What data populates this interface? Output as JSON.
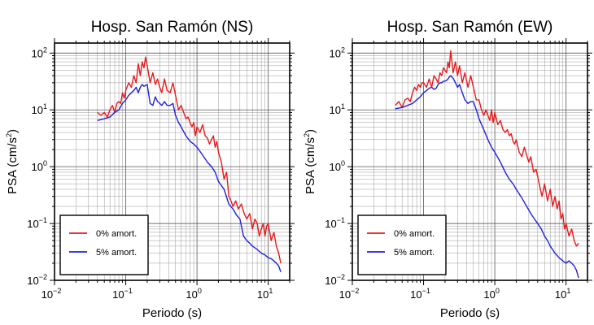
{
  "chart_data": [
    {
      "type": "line",
      "title": "Hosp. San Ramón (NS)",
      "xlabel": "Periodo (s)",
      "ylabel": "PSA (cm/s²)",
      "ylabel_parts": {
        "base": "PSA (cm/s",
        "sup": "2",
        "close": ")"
      },
      "xscale": "log",
      "yscale": "log",
      "xlim": [
        0.01,
        20
      ],
      "ylim": [
        0.01,
        150
      ],
      "x_ticks": [
        {
          "base": "10",
          "exp": "−2"
        },
        {
          "base": "10",
          "exp": "−1"
        },
        {
          "base": "10",
          "exp": "0"
        },
        {
          "base": "10",
          "exp": "1"
        }
      ],
      "y_ticks": [
        {
          "base": "10",
          "exp": "−2"
        },
        {
          "base": "10",
          "exp": "−1"
        },
        {
          "base": "10",
          "exp": "0"
        },
        {
          "base": "10",
          "exp": "1"
        },
        {
          "base": "10",
          "exp": "2"
        }
      ],
      "grid": true,
      "legend_position": "bottom-left",
      "series": [
        {
          "name": "0% amort.",
          "color": "#e8191c",
          "x": [
            0.04,
            0.045,
            0.05,
            0.055,
            0.06,
            0.065,
            0.07,
            0.075,
            0.08,
            0.085,
            0.09,
            0.095,
            0.1,
            0.11,
            0.12,
            0.13,
            0.14,
            0.15,
            0.16,
            0.17,
            0.18,
            0.19,
            0.2,
            0.22,
            0.24,
            0.26,
            0.28,
            0.3,
            0.32,
            0.35,
            0.38,
            0.42,
            0.46,
            0.5,
            0.55,
            0.6,
            0.65,
            0.7,
            0.75,
            0.8,
            0.85,
            0.9,
            0.95,
            1.0,
            1.1,
            1.2,
            1.3,
            1.4,
            1.5,
            1.6,
            1.7,
            1.8,
            1.9,
            2.0,
            2.2,
            2.4,
            2.6,
            2.8,
            3.0,
            3.2,
            3.5,
            3.8,
            4.2,
            4.6,
            5.0,
            5.5,
            6.0,
            6.5,
            7.0,
            7.5,
            8.0,
            8.5,
            9.0,
            9.5,
            10,
            11,
            12,
            13,
            14,
            15
          ],
          "y": [
            9,
            8,
            9,
            7.5,
            10,
            12,
            9,
            13,
            14,
            13,
            20,
            16,
            22,
            30,
            25,
            40,
            30,
            65,
            40,
            70,
            55,
            85,
            60,
            30,
            45,
            28,
            35,
            25,
            20,
            35,
            22,
            20,
            30,
            18,
            10,
            12,
            9,
            7,
            7.5,
            6,
            5,
            6,
            3.5,
            5,
            4,
            5.5,
            3.5,
            3.2,
            2.5,
            3,
            3.5,
            2.2,
            2.8,
            1.8,
            1.2,
            0.6,
            0.8,
            0.3,
            0.25,
            0.2,
            0.25,
            0.18,
            0.22,
            0.15,
            0.12,
            0.15,
            0.08,
            0.12,
            0.1,
            0.06,
            0.08,
            0.1,
            0.06,
            0.09,
            0.1,
            0.05,
            0.07,
            0.04,
            0.03,
            0.02
          ]
        },
        {
          "name": "5% amort.",
          "color": "#1f1fe0",
          "x": [
            0.04,
            0.05,
            0.06,
            0.07,
            0.08,
            0.09,
            0.1,
            0.11,
            0.12,
            0.13,
            0.14,
            0.15,
            0.16,
            0.17,
            0.18,
            0.19,
            0.2,
            0.22,
            0.24,
            0.26,
            0.28,
            0.3,
            0.32,
            0.35,
            0.38,
            0.42,
            0.46,
            0.5,
            0.55,
            0.6,
            0.7,
            0.8,
            0.9,
            1.0,
            1.2,
            1.4,
            1.6,
            1.8,
            2.0,
            2.4,
            2.8,
            3.2,
            3.6,
            4.0,
            4.5,
            5.0,
            5.5,
            6.0,
            7.0,
            8.0,
            9.0,
            10,
            11,
            12,
            13,
            14,
            15
          ],
          "y": [
            6.5,
            7,
            7.5,
            9,
            10,
            13,
            15,
            18,
            20,
            22,
            25,
            20,
            25,
            28,
            26,
            27,
            28,
            13,
            12,
            17,
            14,
            13,
            12,
            14,
            12,
            12,
            13,
            8,
            6,
            5,
            3.5,
            2.8,
            2.5,
            2.2,
            1.6,
            1.2,
            1.0,
            0.8,
            0.55,
            0.4,
            0.22,
            0.18,
            0.14,
            0.12,
            0.06,
            0.05,
            0.045,
            0.04,
            0.035,
            0.03,
            0.028,
            0.025,
            0.024,
            0.022,
            0.02,
            0.018,
            0.014
          ]
        }
      ]
    },
    {
      "type": "line",
      "title": "Hosp. San Ramón (EW)",
      "xlabel": "Periodo (s)",
      "ylabel": "PSA (cm/s²)",
      "ylabel_parts": {
        "base": "PSA (cm/s",
        "sup": "2",
        "close": ")"
      },
      "xscale": "log",
      "yscale": "log",
      "xlim": [
        0.01,
        20
      ],
      "ylim": [
        0.01,
        150
      ],
      "x_ticks": [
        {
          "base": "10",
          "exp": "−2"
        },
        {
          "base": "10",
          "exp": "−1"
        },
        {
          "base": "10",
          "exp": "0"
        },
        {
          "base": "10",
          "exp": "1"
        }
      ],
      "y_ticks": [
        {
          "base": "10",
          "exp": "−2"
        },
        {
          "base": "10",
          "exp": "−1"
        },
        {
          "base": "10",
          "exp": "0"
        },
        {
          "base": "10",
          "exp": "1"
        },
        {
          "base": "10",
          "exp": "2"
        }
      ],
      "grid": true,
      "legend_position": "bottom-left",
      "series": [
        {
          "name": "0% amort.",
          "color": "#e8191c",
          "x": [
            0.04,
            0.045,
            0.05,
            0.055,
            0.06,
            0.065,
            0.07,
            0.075,
            0.08,
            0.085,
            0.09,
            0.095,
            0.1,
            0.11,
            0.12,
            0.13,
            0.14,
            0.15,
            0.16,
            0.17,
            0.18,
            0.19,
            0.2,
            0.21,
            0.22,
            0.23,
            0.24,
            0.26,
            0.28,
            0.3,
            0.32,
            0.35,
            0.38,
            0.42,
            0.46,
            0.5,
            0.55,
            0.6,
            0.65,
            0.7,
            0.75,
            0.8,
            0.85,
            0.9,
            0.95,
            1.0,
            1.1,
            1.2,
            1.3,
            1.4,
            1.5,
            1.6,
            1.7,
            1.8,
            1.9,
            2.0,
            2.2,
            2.4,
            2.6,
            2.8,
            3.0,
            3.2,
            3.5,
            3.8,
            4.2,
            4.6,
            5.0,
            5.5,
            6.0,
            6.5,
            7.0,
            7.5,
            8.0,
            8.5,
            9.0,
            9.5,
            10,
            11,
            12,
            13,
            14,
            15
          ],
          "y": [
            12,
            14,
            11,
            15,
            16,
            14,
            20,
            25,
            22,
            28,
            25,
            30,
            30,
            25,
            35,
            25,
            40,
            35,
            30,
            45,
            40,
            55,
            50,
            45,
            70,
            55,
            110,
            45,
            70,
            40,
            60,
            30,
            45,
            25,
            40,
            25,
            15,
            15,
            10,
            8,
            10,
            8,
            6.5,
            10,
            6,
            9,
            5.5,
            6.5,
            4.5,
            4,
            4.5,
            3.5,
            3.8,
            2.8,
            2.5,
            3,
            1.8,
            1.5,
            2.2,
            1.6,
            1.2,
            1.5,
            0.8,
            0.9,
            0.5,
            0.3,
            0.5,
            0.25,
            0.4,
            0.2,
            0.3,
            0.18,
            0.25,
            0.12,
            0.15,
            0.08,
            0.1,
            0.06,
            0.08,
            0.05,
            0.04,
            0.045
          ]
        },
        {
          "name": "5% amort.",
          "color": "#1f1fe0",
          "x": [
            0.04,
            0.05,
            0.06,
            0.07,
            0.08,
            0.09,
            0.1,
            0.11,
            0.12,
            0.13,
            0.14,
            0.15,
            0.16,
            0.17,
            0.18,
            0.19,
            0.2,
            0.21,
            0.22,
            0.23,
            0.24,
            0.26,
            0.28,
            0.3,
            0.32,
            0.35,
            0.38,
            0.42,
            0.46,
            0.5,
            0.55,
            0.6,
            0.7,
            0.8,
            0.9,
            1.0,
            1.2,
            1.4,
            1.6,
            1.8,
            2.0,
            2.4,
            2.8,
            3.2,
            3.6,
            4.0,
            4.5,
            5.0,
            5.5,
            6.0,
            7.0,
            8.0,
            9.0,
            10,
            11,
            12,
            13,
            14,
            15
          ],
          "y": [
            10.5,
            11,
            12,
            13,
            15,
            17,
            20,
            22,
            24,
            25,
            23,
            24,
            28,
            30,
            30,
            32,
            32,
            33,
            35,
            38,
            40,
            36,
            30,
            25,
            28,
            20,
            15,
            13,
            14,
            14,
            10,
            7,
            4.5,
            3,
            2.2,
            1.8,
            1.2,
            0.8,
            0.6,
            0.5,
            0.4,
            0.28,
            0.2,
            0.15,
            0.12,
            0.1,
            0.08,
            0.06,
            0.05,
            0.04,
            0.03,
            0.025,
            0.022,
            0.02,
            0.022,
            0.02,
            0.018,
            0.015,
            0.011
          ]
        }
      ]
    }
  ]
}
